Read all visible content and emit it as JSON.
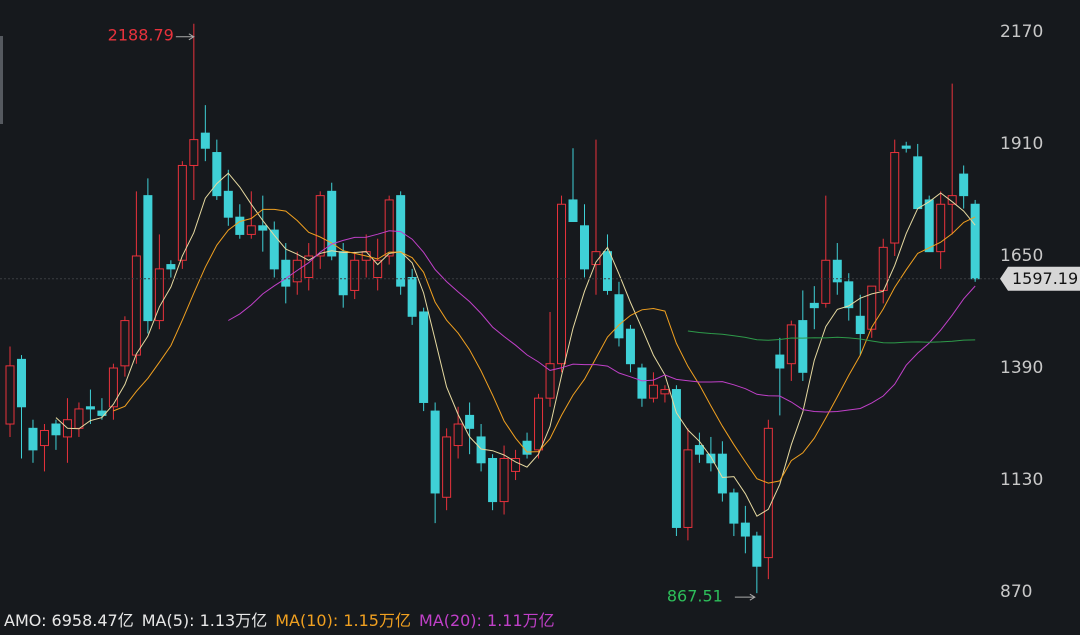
{
  "chart_data": {
    "type": "candlestick",
    "open": [
      1260,
      1410,
      1250,
      1210,
      1260,
      1230,
      1250,
      1300,
      1290,
      1300,
      1395,
      1420,
      1790,
      1500,
      1630,
      1640,
      1860,
      1935,
      1890,
      1800,
      1740,
      1700,
      1720,
      1710,
      1640,
      1590,
      1600,
      1650,
      1800,
      1660,
      1570,
      1640,
      1600,
      1650,
      1790,
      1600,
      1520,
      1290,
      1090,
      1210,
      1280,
      1230,
      1180,
      1080,
      1150,
      1220,
      1200,
      1320,
      1400,
      1780,
      1720,
      1630,
      1660,
      1560,
      1480,
      1390,
      1320,
      1330,
      1340,
      1020,
      1210,
      1190,
      1190,
      1100,
      1030,
      1000,
      950,
      1420,
      1400,
      1500,
      1540,
      1540,
      1640,
      1590,
      1510,
      1480,
      1570,
      1680,
      1905,
      1880,
      1780,
      1660,
      1770,
      1840,
      1770
    ],
    "high": [
      1440,
      1420,
      1270,
      1260,
      1270,
      1320,
      1310,
      1340,
      1320,
      1400,
      1510,
      1800,
      1830,
      1700,
      1640,
      1870,
      2188.79,
      2000,
      1920,
      1850,
      1770,
      1800,
      1790,
      1730,
      1680,
      1660,
      1680,
      1800,
      1820,
      1680,
      1660,
      1700,
      1690,
      1790,
      1800,
      1620,
      1530,
      1310,
      1250,
      1300,
      1310,
      1260,
      1190,
      1210,
      1200,
      1240,
      1330,
      1520,
      1790,
      1900,
      1770,
      1920,
      1700,
      1590,
      1490,
      1400,
      1380,
      1350,
      1350,
      1250,
      1240,
      1230,
      1220,
      1110,
      1070,
      1010,
      1270,
      1460,
      1500,
      1570,
      1580,
      1790,
      1680,
      1610,
      1560,
      1580,
      1690,
      1920,
      1915,
      1910,
      1790,
      1800,
      2050,
      1860,
      1780
    ],
    "low": [
      1230,
      1180,
      1170,
      1150,
      1200,
      1170,
      1230,
      1260,
      1270,
      1270,
      1370,
      1400,
      1470,
      1480,
      1600,
      1620,
      1780,
      1870,
      1780,
      1720,
      1690,
      1690,
      1660,
      1600,
      1540,
      1560,
      1570,
      1620,
      1640,
      1530,
      1550,
      1600,
      1570,
      1630,
      1560,
      1490,
      1290,
      1030,
      1060,
      1180,
      1190,
      1150,
      1060,
      1050,
      1130,
      1180,
      1180,
      1300,
      1380,
      1730,
      1600,
      1560,
      1560,
      1440,
      1380,
      1300,
      1310,
      1310,
      1000,
      990,
      1170,
      1150,
      1080,
      1000,
      960,
      867.51,
      900,
      1280,
      1360,
      1360,
      1480,
      1530,
      1560,
      1500,
      1420,
      1460,
      1540,
      1650,
      1890,
      1760,
      1660,
      1620,
      1700,
      1760,
      1590
    ],
    "close": [
      1395,
      1300,
      1200,
      1245,
      1235,
      1270,
      1295,
      1295,
      1280,
      1390,
      1500,
      1650,
      1500,
      1620,
      1620,
      1860,
      1920,
      1900,
      1790,
      1740,
      1700,
      1720,
      1710,
      1620,
      1580,
      1640,
      1650,
      1790,
      1650,
      1560,
      1640,
      1660,
      1640,
      1780,
      1580,
      1510,
      1310,
      1100,
      1230,
      1260,
      1250,
      1170,
      1080,
      1180,
      1180,
      1190,
      1320,
      1400,
      1770,
      1730,
      1620,
      1660,
      1570,
      1460,
      1400,
      1320,
      1350,
      1340,
      1020,
      1200,
      1190,
      1170,
      1100,
      1030,
      1000,
      930,
      1250,
      1390,
      1490,
      1380,
      1530,
      1640,
      1590,
      1530,
      1470,
      1580,
      1670,
      1890,
      1900,
      1760,
      1660,
      1770,
      1790,
      1790,
      1597.19
    ],
    "up_color": "#e8323c",
    "down_color": "#3fd0d6",
    "moving_averages": [
      {
        "period": 5,
        "color": "#e6d9a0"
      },
      {
        "period": 10,
        "color": "#f0a020"
      },
      {
        "period": 20,
        "color": "#c040c8"
      },
      {
        "period": 60,
        "color": "#2e9a4a"
      }
    ],
    "ylim": [
      840,
      2244
    ],
    "yticks": [
      870,
      1130,
      1390,
      1650,
      1910,
      2170
    ],
    "high_label_color": "#e8323c",
    "low_label_color": "#2dbd5a",
    "footer": [
      {
        "text": "AMO: 6958.47亿",
        "color": "#e8e8e8"
      },
      {
        "text": "MA(5): 1.13万亿",
        "color": "#e8e8e8"
      },
      {
        "text": "MA(10): 1.15万亿",
        "color": "#f0a020"
      },
      {
        "text": "MA(20): 1.11万亿",
        "color": "#c040c8"
      }
    ]
  }
}
